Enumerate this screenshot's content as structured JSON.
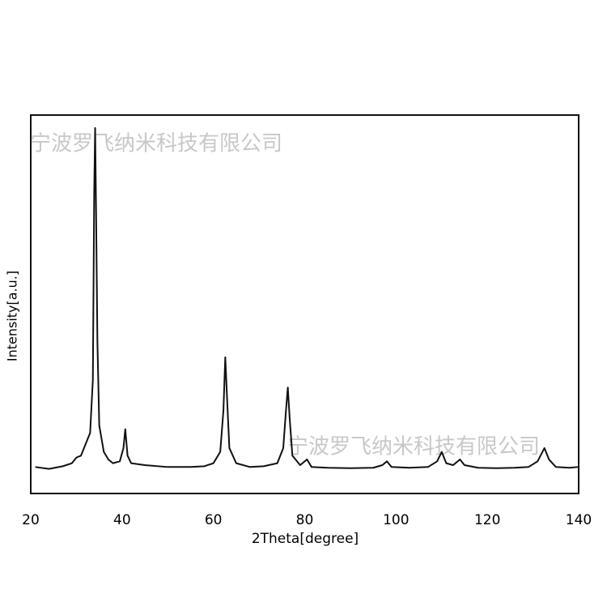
{
  "chart_data": {
    "type": "line",
    "xlabel": "2Theta[degree]",
    "ylabel": "Intensity[a.u.]",
    "watermarks": [
      "宁波罗飞纳米科技有限公司",
      "宁波罗飞纳米科技有限公司"
    ],
    "xlim": [
      20,
      140
    ],
    "xticks": [
      20,
      40,
      60,
      80,
      100,
      120,
      140
    ],
    "ylim": [
      0,
      100
    ],
    "series": [
      {
        "color": "#111111",
        "x": [
          21,
          24,
          27,
          29,
          30,
          31,
          32,
          33,
          33.6,
          33.9,
          34.1,
          34.3,
          34.6,
          35,
          36,
          37,
          38,
          39.5,
          40.3,
          40.7,
          41.2,
          42,
          45,
          50,
          55,
          58,
          60,
          61.5,
          62.2,
          62.6,
          63,
          63.5,
          65,
          68,
          71,
          74,
          75.3,
          75.9,
          76.3,
          76.7,
          77.3,
          79,
          80.5,
          81.5,
          85,
          90,
          95,
          97,
          98,
          99,
          103,
          107,
          109,
          110,
          111,
          112.5,
          114,
          115,
          118,
          122,
          126,
          129,
          131,
          132.5,
          133.5,
          135,
          138,
          139.8
        ],
        "values": [
          7,
          6.5,
          7.2,
          8,
          9.5,
          10,
          13,
          16,
          30,
          80,
          96.6,
          75,
          40,
          18,
          11,
          9,
          8,
          8.5,
          12,
          17,
          10,
          8,
          7.5,
          7,
          7,
          7.2,
          8,
          11,
          22,
          36,
          25,
          12,
          8,
          7,
          7.2,
          8,
          12,
          22,
          28,
          20,
          10,
          7.5,
          9,
          7,
          6.8,
          6.7,
          6.8,
          7.5,
          8.5,
          7,
          6.8,
          7,
          8.5,
          11,
          8,
          7.5,
          9,
          7.5,
          6.8,
          6.7,
          6.8,
          7,
          8.5,
          12,
          9,
          7,
          6.8,
          7
        ]
      }
    ]
  }
}
